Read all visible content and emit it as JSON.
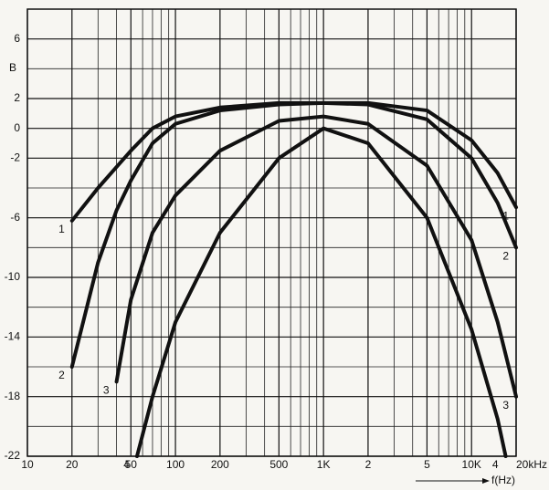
{
  "chart_data": {
    "type": "line",
    "y_axis_label": "B",
    "x_axis_label": "f(Hz)",
    "log_x": true,
    "xlim": [
      10,
      20000
    ],
    "ylim": [
      -22,
      8
    ],
    "xticks": [
      10,
      20,
      50,
      100,
      200,
      500,
      {
        "value": 1000,
        "label": "1K"
      },
      {
        "value": 2000,
        "label": "2"
      },
      {
        "value": 5000,
        "label": "5"
      },
      {
        "value": 10000,
        "label": "10K"
      },
      {
        "value": 20000,
        "label": "20kHz"
      }
    ],
    "minor_xticks": [
      30,
      40,
      60,
      70,
      80,
      90,
      300,
      400,
      600,
      700,
      800,
      900,
      3000,
      4000,
      6000,
      7000,
      8000,
      9000
    ],
    "yticks": [
      6,
      2,
      0,
      -2,
      -6,
      -10,
      -14,
      -18,
      -22
    ],
    "minor_yticks": [
      8,
      4,
      -4,
      -8,
      -12,
      -16,
      -20
    ],
    "grid": true,
    "series": [
      {
        "name": "1",
        "color": "#111111",
        "x": [
          20,
          30,
          50,
          70,
          100,
          200,
          500,
          1000,
          2000,
          5000,
          10000,
          15000,
          20000
        ],
        "values": [
          -6.2,
          -4,
          -1.5,
          0,
          0.8,
          1.4,
          1.7,
          1.7,
          1.7,
          1.2,
          -0.8,
          -3,
          -5.3
        ]
      },
      {
        "name": "2",
        "color": "#111111",
        "x": [
          20,
          30,
          40,
          50,
          70,
          100,
          200,
          500,
          1000,
          2000,
          5000,
          10000,
          15000,
          20000
        ],
        "values": [
          -16,
          -9,
          -5.5,
          -3.5,
          -1,
          0.3,
          1.2,
          1.6,
          1.7,
          1.6,
          0.6,
          -2,
          -5,
          -8
        ]
      },
      {
        "name": "3",
        "color": "#111111",
        "x": [
          40,
          50,
          70,
          100,
          200,
          500,
          1000,
          2000,
          5000,
          10000,
          15000,
          20000
        ],
        "values": [
          -17,
          -11.5,
          -7,
          -4.5,
          -1.5,
          0.5,
          0.8,
          0.3,
          -2.5,
          -7.5,
          -13,
          -18
        ]
      },
      {
        "name": "4",
        "color": "#111111",
        "x": [
          55,
          70,
          100,
          200,
          500,
          1000,
          2000,
          5000,
          10000,
          15000,
          17000
        ],
        "values": [
          -22,
          -18,
          -13,
          -7,
          -2,
          0,
          -1,
          -6,
          -13.5,
          -19.5,
          -22
        ]
      }
    ]
  }
}
